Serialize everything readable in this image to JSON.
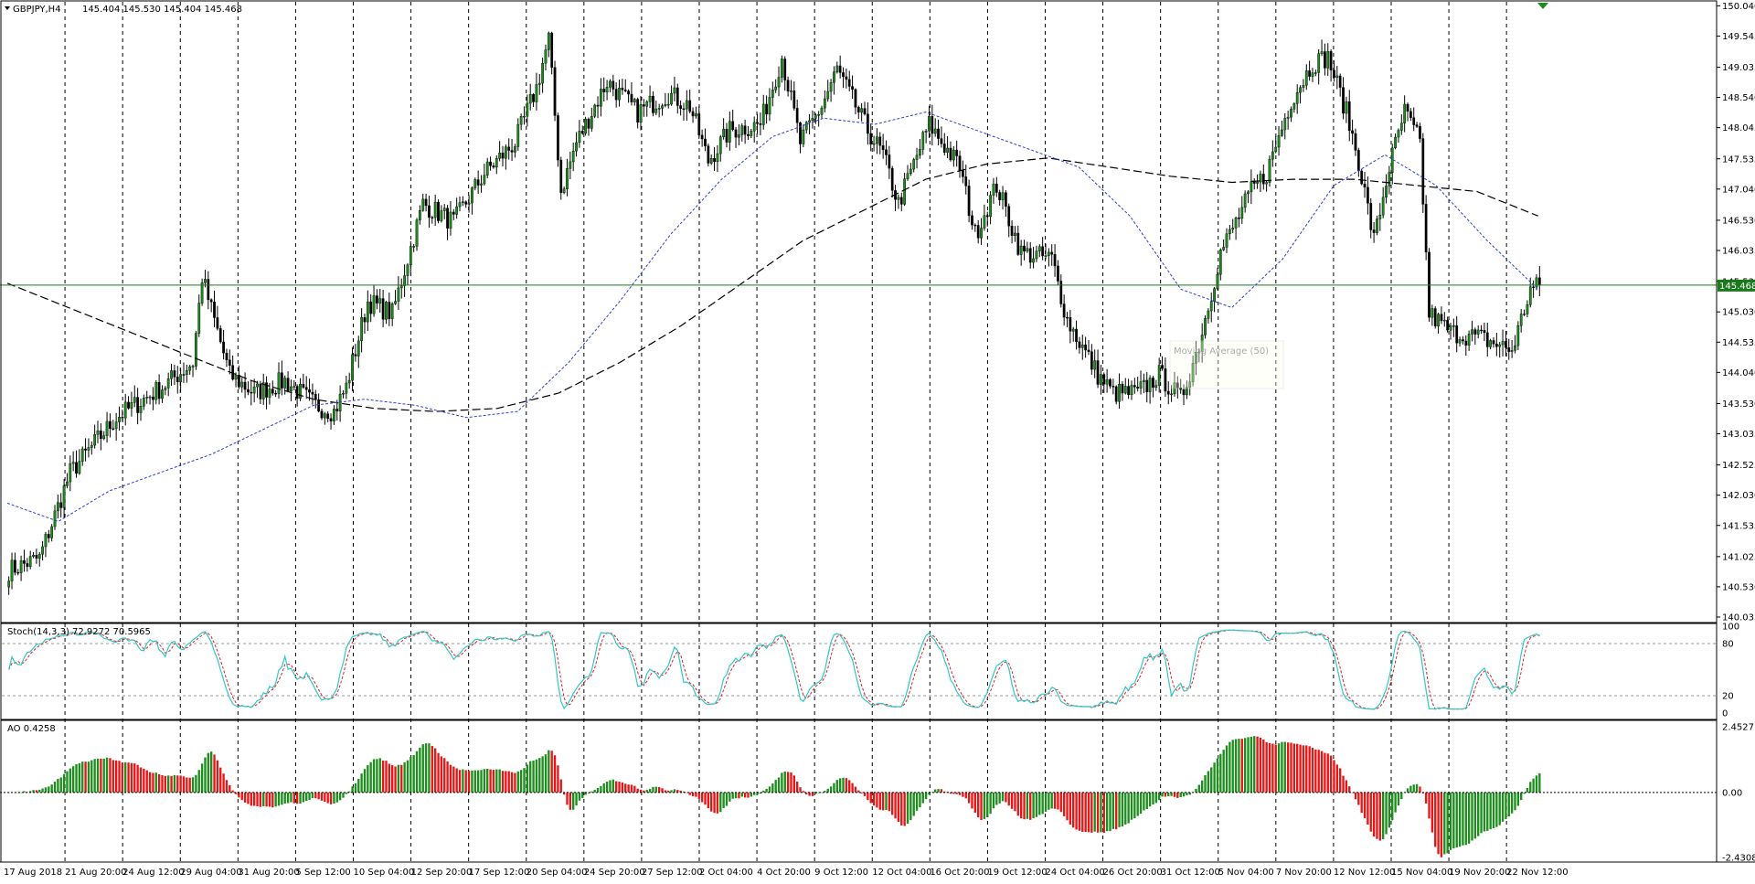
{
  "chart_data": [
    {
      "type": "candlestick",
      "pane": "price",
      "symbol_label": "GBPJPY,H4",
      "ohlc_label": "145.404 145.530 145.404 145.468",
      "current_price": 145.468,
      "current_price_label": "145.468",
      "ylim": [
        140.035,
        150.06
      ],
      "y_ticks": [
        "150.040",
        "149.545",
        "149.035",
        "148.540",
        "148.045",
        "147.535",
        "147.040",
        "146.530",
        "146.035",
        "145.530",
        "145.030",
        "144.535",
        "144.040",
        "143.530",
        "143.035",
        "142.525",
        "142.030",
        "141.535",
        "141.025",
        "140.530",
        "140.035"
      ],
      "x_ticks": [
        "17 Aug 2018",
        "21 Aug 20:00",
        "24 Aug 12:00",
        "29 Aug 04:00",
        "31 Aug 20:00",
        "5 Sep 12:00",
        "10 Sep 04:00",
        "12 Sep 20:00",
        "17 Sep 12:00",
        "20 Sep 04:00",
        "24 Sep 20:00",
        "27 Sep 12:00",
        "2 Oct 04:00",
        "4 Oct 20:00",
        "9 Oct 12:00",
        "12 Oct 04:00",
        "16 Oct 20:00",
        "19 Oct 12:00",
        "24 Oct 04:00",
        "26 Oct 20:00",
        "31 Oct 12:00",
        "5 Nov 04:00",
        "7 Nov 20:00",
        "12 Nov 12:00",
        "15 Nov 04:00",
        "19 Nov 20:00",
        "22 Nov 12:00"
      ],
      "series": [
        {
          "name": "Moving Average (50)",
          "values": [
            141.9,
            141.6,
            142.1,
            142.4,
            142.7,
            143.1,
            143.5,
            143.6,
            143.5,
            143.3,
            143.4,
            144.2,
            145.2,
            146.3,
            147.2,
            147.9,
            148.2,
            148.1,
            148.3,
            148.0,
            147.7,
            147.4,
            146.6,
            145.4,
            145.1,
            145.9,
            147.1,
            147.6,
            147.1,
            146.2,
            145.4
          ]
        },
        {
          "name": "",
          "values": [
            145.5,
            145.1,
            144.7,
            144.3,
            143.9,
            143.6,
            143.45,
            143.4,
            143.45,
            143.7,
            144.2,
            144.8,
            145.5,
            146.2,
            146.7,
            147.2,
            147.45,
            147.55,
            147.4,
            147.25,
            147.15,
            147.2,
            147.2,
            147.1,
            147.0,
            146.6
          ]
        }
      ],
      "anchors": [
        [
          0,
          140.8
        ],
        [
          10,
          141.0
        ],
        [
          20,
          142.4
        ],
        [
          35,
          143.3
        ],
        [
          50,
          143.8
        ],
        [
          60,
          144.2
        ],
        [
          63,
          145.6
        ],
        [
          72,
          144.0
        ],
        [
          80,
          143.7
        ],
        [
          90,
          143.9
        ],
        [
          100,
          143.5
        ],
        [
          106,
          143.4
        ],
        [
          110,
          143.8
        ],
        [
          117,
          145.2
        ],
        [
          125,
          145.0
        ],
        [
          135,
          146.8
        ],
        [
          145,
          146.5
        ],
        [
          155,
          147.3
        ],
        [
          165,
          147.8
        ],
        [
          172,
          148.7
        ],
        [
          176,
          149.5
        ],
        [
          180,
          147.0
        ],
        [
          185,
          147.8
        ],
        [
          195,
          148.8
        ],
        [
          205,
          148.3
        ],
        [
          215,
          148.6
        ],
        [
          222,
          148.4
        ],
        [
          228,
          147.5
        ],
        [
          235,
          148.0
        ],
        [
          245,
          148.1
        ],
        [
          252,
          149.2
        ],
        [
          258,
          147.8
        ],
        [
          265,
          148.4
        ],
        [
          270,
          149.0
        ],
        [
          280,
          148.0
        ],
        [
          285,
          147.6
        ],
        [
          290,
          146.8
        ],
        [
          300,
          148.1
        ],
        [
          310,
          147.4
        ],
        [
          315,
          146.3
        ],
        [
          322,
          147.1
        ],
        [
          330,
          146.0
        ],
        [
          340,
          145.9
        ],
        [
          345,
          144.9
        ],
        [
          355,
          144.0
        ],
        [
          360,
          143.7
        ],
        [
          368,
          143.7
        ],
        [
          375,
          144.0
        ],
        [
          382,
          143.6
        ],
        [
          388,
          144.5
        ],
        [
          395,
          146.0
        ],
        [
          405,
          147.0
        ],
        [
          410,
          147.3
        ],
        [
          418,
          148.5
        ],
        [
          425,
          149.1
        ],
        [
          430,
          149.2
        ],
        [
          436,
          148.3
        ],
        [
          440,
          147.5
        ],
        [
          445,
          146.2
        ],
        [
          450,
          147.4
        ],
        [
          455,
          148.3
        ],
        [
          460,
          147.8
        ],
        [
          463,
          145.0
        ],
        [
          470,
          144.7
        ],
        [
          480,
          144.6
        ],
        [
          490,
          144.4
        ],
        [
          496,
          145.4
        ],
        [
          500,
          145.47
        ]
      ],
      "total_bars": 500
    },
    {
      "type": "line",
      "pane": "stochastic",
      "label": "Stoch(14,3,3) 72.9272 70.5965",
      "ylim": [
        0,
        100
      ],
      "y_ticks": [
        "100",
        "80",
        "20",
        "0"
      ],
      "levels": [
        80,
        20
      ]
    },
    {
      "type": "bar",
      "pane": "awesome_oscillator",
      "label": "AO 0.4258",
      "ylim": [
        -2.43,
        2.4527
      ],
      "y_ticks": [
        "2.4527",
        "0.00",
        "-2.4308"
      ],
      "colors": {
        "up": "#1d8e1d",
        "down": "#e51616"
      }
    }
  ],
  "colors": {
    "bull": "#1a8c1a",
    "bear": "#000000",
    "price_line": "#1a7a1a"
  }
}
